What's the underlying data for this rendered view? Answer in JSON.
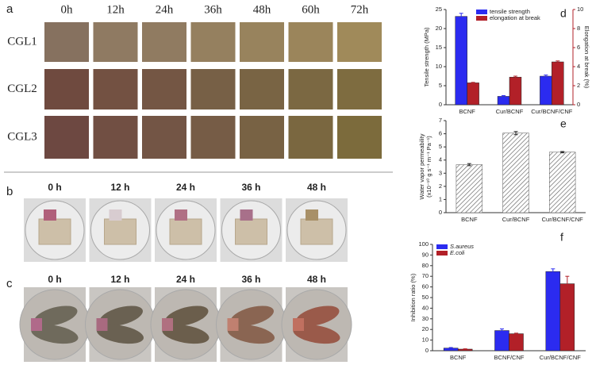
{
  "panel_a": {
    "label": "a",
    "columns": [
      "0h",
      "12h",
      "24h",
      "36h",
      "48h",
      "60h",
      "72h"
    ],
    "rows": [
      "CGL1",
      "CGL2",
      "CGL3"
    ]
  },
  "panel_b": {
    "label": "b",
    "times": [
      "0 h",
      "12 h",
      "24 h",
      "36 h",
      "48 h"
    ]
  },
  "panel_c": {
    "label": "c",
    "times": [
      "0 h",
      "12 h",
      "24 h",
      "36 h",
      "48 h"
    ]
  },
  "chart_data": [
    {
      "panel_label": "d",
      "type": "bar",
      "categories": [
        "BCNF",
        "Cur/BCNF",
        "Cur/BCNF/CNF"
      ],
      "ylabel": "Tensile strength (MPa)",
      "y2label": "Elongation at break (%)",
      "ylim": [
        0,
        25
      ],
      "yticks": [
        0,
        5,
        10,
        15,
        20,
        25
      ],
      "y2lim": [
        0,
        10
      ],
      "y2ticks": [
        0,
        2,
        4,
        6,
        8,
        10
      ],
      "legend": "upper right",
      "series": [
        {
          "name": "tensile strength",
          "color": "#2b2bf0",
          "values": [
            23.2,
            2.2,
            7.5
          ],
          "errors": [
            0.8,
            0.2,
            0.3
          ]
        },
        {
          "name": "elongation at break",
          "color": "#b22028",
          "axis": "y2",
          "values": [
            2.3,
            2.9,
            4.5
          ],
          "errors": [
            0.05,
            0.1,
            0.1
          ]
        }
      ]
    },
    {
      "panel_label": "e",
      "type": "bar",
      "categories": [
        "BCNF",
        "Cur/BCNF",
        "Cur/BCNF/CNF"
      ],
      "ylabel": [
        "Water vapor permeability",
        "(x10⁻¹⁰ g s⁻¹ m⁻¹ Pa⁻¹)"
      ],
      "ylim": [
        0,
        7
      ],
      "yticks": [
        0,
        1,
        2,
        3,
        4,
        5,
        6,
        7
      ],
      "hatch": true,
      "color": "#555555",
      "values": [
        3.65,
        6.05,
        4.6
      ],
      "errors": [
        0.08,
        0.12,
        0.05
      ]
    },
    {
      "panel_label": "f",
      "type": "bar",
      "categories": [
        "BCNF",
        "BCNF/CNF",
        "Cur/BCNF/CNF"
      ],
      "ylabel": "Inhibition ratio (%)",
      "ylim": [
        0,
        100
      ],
      "yticks": [
        0,
        10,
        20,
        30,
        40,
        50,
        60,
        70,
        80,
        90,
        100
      ],
      "legend": "upper left",
      "series": [
        {
          "name": "S.aureus",
          "color": "#2b2bf0",
          "values": [
            2.5,
            19,
            74.5
          ],
          "errors": [
            0.5,
            1.5,
            2.5
          ]
        },
        {
          "name": "E.coli",
          "color": "#b22028",
          "values": [
            1.5,
            16,
            63
          ],
          "errors": [
            0.3,
            0.5,
            7
          ]
        }
      ]
    }
  ]
}
